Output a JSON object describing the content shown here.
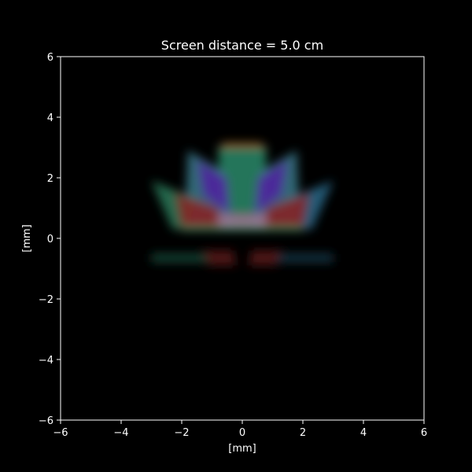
{
  "chart_data": {
    "type": "heatmap",
    "title": "Screen distance = 5.0 cm",
    "xlabel": "[mm]",
    "ylabel": "[mm]",
    "xlim": [
      -6,
      6
    ],
    "ylim": [
      -6,
      6
    ],
    "xticks": [
      -6,
      -4,
      -2,
      0,
      2,
      4,
      6
    ],
    "yticks": [
      -6,
      -4,
      -2,
      0,
      2,
      4,
      6
    ],
    "xtick_labels": [
      "−6",
      "−4",
      "−2",
      "0",
      "2",
      "4",
      "6"
    ],
    "ytick_labels": [
      "−6",
      "−4",
      "−2",
      "0",
      "2",
      "4",
      "6"
    ],
    "grid": false,
    "background_color": "#000000",
    "axis_color": "#ffffff",
    "colormap": "rgb",
    "regions": [
      {
        "name": "top-fan",
        "color": "#2a8a6a",
        "points": [
          [
            -0.8,
            3.0
          ],
          [
            0.8,
            3.0
          ],
          [
            0.7,
            0.3
          ],
          [
            -0.7,
            0.3
          ]
        ]
      },
      {
        "name": "top-cap",
        "color": "#b07020",
        "points": [
          [
            -0.8,
            3.0
          ],
          [
            0.8,
            3.0
          ],
          [
            0.6,
            3.15
          ],
          [
            -0.6,
            3.15
          ]
        ]
      },
      {
        "name": "left-upper-fan",
        "color": "#3a7a8a",
        "points": [
          [
            -1.8,
            2.9
          ],
          [
            -0.6,
            2.2
          ],
          [
            -0.3,
            0.3
          ],
          [
            -1.9,
            0.3
          ]
        ]
      },
      {
        "name": "right-upper-fan",
        "color": "#3a7a8a",
        "points": [
          [
            1.8,
            2.9
          ],
          [
            0.6,
            2.2
          ],
          [
            0.3,
            0.3
          ],
          [
            1.9,
            0.3
          ]
        ]
      },
      {
        "name": "left-purple",
        "color": "#5020a0",
        "points": [
          [
            -1.5,
            2.6
          ],
          [
            -0.5,
            2.0
          ],
          [
            -0.4,
            0.8
          ],
          [
            -1.3,
            1.4
          ]
        ]
      },
      {
        "name": "right-purple",
        "color": "#5020a0",
        "points": [
          [
            1.5,
            2.6
          ],
          [
            0.5,
            2.0
          ],
          [
            0.4,
            0.8
          ],
          [
            1.3,
            1.4
          ]
        ]
      },
      {
        "name": "left-outer-fan",
        "color": "#2a7a5a",
        "points": [
          [
            -3.0,
            1.9
          ],
          [
            -1.5,
            1.3
          ],
          [
            -1.8,
            0.3
          ],
          [
            -2.3,
            0.3
          ]
        ]
      },
      {
        "name": "right-outer-fan",
        "color": "#2a6a8a",
        "points": [
          [
            3.0,
            1.9
          ],
          [
            1.5,
            1.3
          ],
          [
            1.8,
            0.3
          ],
          [
            2.3,
            0.3
          ]
        ]
      },
      {
        "name": "left-red",
        "color": "#8a2020",
        "points": [
          [
            -2.2,
            1.5
          ],
          [
            -0.8,
            1.0
          ],
          [
            -0.6,
            0.3
          ],
          [
            -2.0,
            0.3
          ]
        ]
      },
      {
        "name": "right-red",
        "color": "#8a2020",
        "points": [
          [
            2.2,
            1.5
          ],
          [
            0.8,
            1.0
          ],
          [
            0.6,
            0.3
          ],
          [
            2.0,
            0.3
          ]
        ]
      },
      {
        "name": "center-pink",
        "color": "#a07090",
        "points": [
          [
            -0.8,
            0.8
          ],
          [
            0.8,
            0.8
          ],
          [
            0.8,
            0.3
          ],
          [
            -0.8,
            0.3
          ]
        ]
      },
      {
        "name": "base-green",
        "color": "#2a9a6a",
        "points": [
          [
            -2.0,
            0.38
          ],
          [
            2.0,
            0.38
          ],
          [
            2.0,
            0.25
          ],
          [
            -2.0,
            0.25
          ]
        ]
      },
      {
        "name": "lower-left-ghost",
        "color": "#1a4a3a",
        "points": [
          [
            -3.0,
            -0.5
          ],
          [
            -1.2,
            -0.5
          ],
          [
            -1.0,
            -0.8
          ],
          [
            -3.0,
            -0.8
          ]
        ]
      },
      {
        "name": "lower-right-ghost",
        "color": "#1a3a4a",
        "points": [
          [
            3.0,
            -0.5
          ],
          [
            1.2,
            -0.5
          ],
          [
            1.0,
            -0.8
          ],
          [
            3.0,
            -0.8
          ]
        ]
      },
      {
        "name": "lower-left-red",
        "color": "#5a1a1a",
        "points": [
          [
            -1.3,
            -0.4
          ],
          [
            -0.3,
            -0.4
          ],
          [
            -0.2,
            -0.9
          ],
          [
            -1.1,
            -0.9
          ]
        ]
      },
      {
        "name": "lower-right-red",
        "color": "#5a1a1a",
        "points": [
          [
            1.3,
            -0.4
          ],
          [
            0.3,
            -0.4
          ],
          [
            0.2,
            -0.9
          ],
          [
            1.1,
            -0.9
          ]
        ]
      }
    ]
  }
}
